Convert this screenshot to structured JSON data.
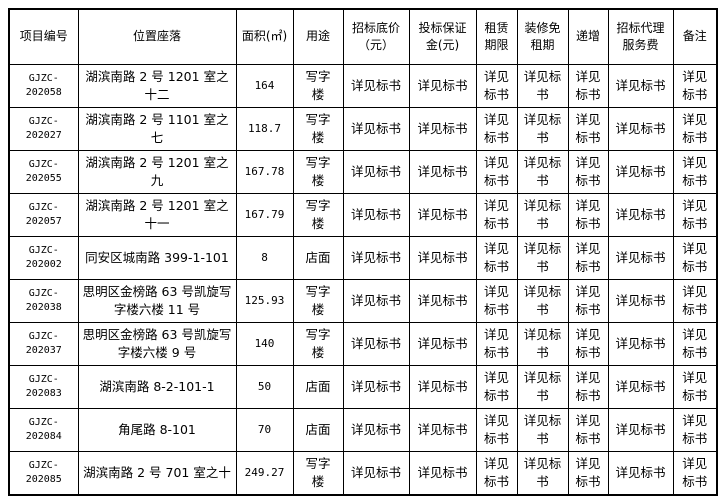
{
  "table": {
    "columns": [
      {
        "key": "project_id",
        "label": "项目编号"
      },
      {
        "key": "location",
        "label": "位置座落"
      },
      {
        "key": "area",
        "label": "面积(㎡)"
      },
      {
        "key": "use",
        "label": "用途"
      },
      {
        "key": "floor_price",
        "label": "招标底价\n（元）"
      },
      {
        "key": "bid_deposit",
        "label": "投标保证\n金(元)"
      },
      {
        "key": "lease_term",
        "label": "租赁\n期限"
      },
      {
        "key": "rent_free",
        "label": "装修免\n租期"
      },
      {
        "key": "increment",
        "label": "递增"
      },
      {
        "key": "agency_fee",
        "label": "招标代理\n服务费"
      },
      {
        "key": "remarks",
        "label": "备注"
      }
    ],
    "rows": [
      [
        "GJZC-202058",
        "湖滨南路 2 号 1201 室之十二",
        "164",
        "写字\n楼",
        "详见标书",
        "详见标书",
        "详见\n标书",
        "详见标\n书",
        "详见\n标书",
        "详见标书",
        "详见\n标书"
      ],
      [
        "GJZC-202027",
        "湖滨南路 2 号 1101 室之七",
        "118.7",
        "写字\n楼",
        "详见标书",
        "详见标书",
        "详见\n标书",
        "详见标\n书",
        "详见\n标书",
        "详见标书",
        "详见\n标书"
      ],
      [
        "GJZC-202055",
        "湖滨南路 2 号 1201 室之九",
        "167.78",
        "写字\n楼",
        "详见标书",
        "详见标书",
        "详见\n标书",
        "详见标\n书",
        "详见\n标书",
        "详见标书",
        "详见\n标书"
      ],
      [
        "GJZC-202057",
        "湖滨南路 2 号 1201 室之十一",
        "167.79",
        "写字\n楼",
        "详见标书",
        "详见标书",
        "详见\n标书",
        "详见标\n书",
        "详见\n标书",
        "详见标书",
        "详见\n标书"
      ],
      [
        "GJZC-202002",
        "同安区城南路 399-1-101",
        "8",
        "店面",
        "详见标书",
        "详见标书",
        "详见\n标书",
        "详见标\n书",
        "详见\n标书",
        "详见标书",
        "详见\n标书"
      ],
      [
        "GJZC-202038",
        "思明区金榜路 63 号凯旋写\n字楼六楼 11 号",
        "125.93",
        "写字\n楼",
        "详见标书",
        "详见标书",
        "详见\n标书",
        "详见标\n书",
        "详见\n标书",
        "详见标书",
        "详见\n标书"
      ],
      [
        "GJZC-202037",
        "思明区金榜路 63 号凯旋写\n字楼六楼 9 号",
        "140",
        "写字\n楼",
        "详见标书",
        "详见标书",
        "详见\n标书",
        "详见标\n书",
        "详见\n标书",
        "详见标书",
        "详见\n标书"
      ],
      [
        "GJZC-202083",
        "湖滨南路 8-2-101-1",
        "50",
        "店面",
        "详见标书",
        "详见标书",
        "详见\n标书",
        "详见标\n书",
        "详见\n标书",
        "详见标书",
        "详见\n标书"
      ],
      [
        "GJZC-202084",
        "角尾路 8-101",
        "70",
        "店面",
        "详见标书",
        "详见标书",
        "详见\n标书",
        "详见标\n书",
        "详见\n标书",
        "详见标书",
        "详见\n标书"
      ],
      [
        "GJZC-202085",
        "湖滨南路 2 号 701 室之十",
        "249.27",
        "写字\n楼",
        "详见标书",
        "详见标书",
        "详见\n标书",
        "详见标\n书",
        "详见\n标书",
        "详见标书",
        "详见\n标书"
      ]
    ],
    "colors": {
      "border": "#000000",
      "text": "#000000",
      "background": "#ffffff"
    }
  }
}
